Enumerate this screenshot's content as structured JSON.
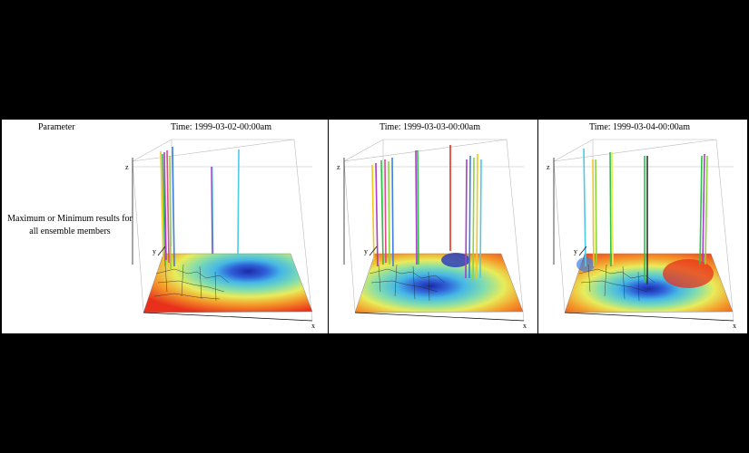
{
  "row_header": "Parameter",
  "row_description": "Maximum or Minimum results for all ensemble members",
  "panels": [
    {
      "time_label": "Time: 1999-03-02-00:00am"
    },
    {
      "time_label": "Time: 1999-03-03-00:00am"
    },
    {
      "time_label": "Time: 1999-03-04-00:00am"
    }
  ],
  "axes": {
    "x": "x",
    "y": "y",
    "z": "z"
  }
}
